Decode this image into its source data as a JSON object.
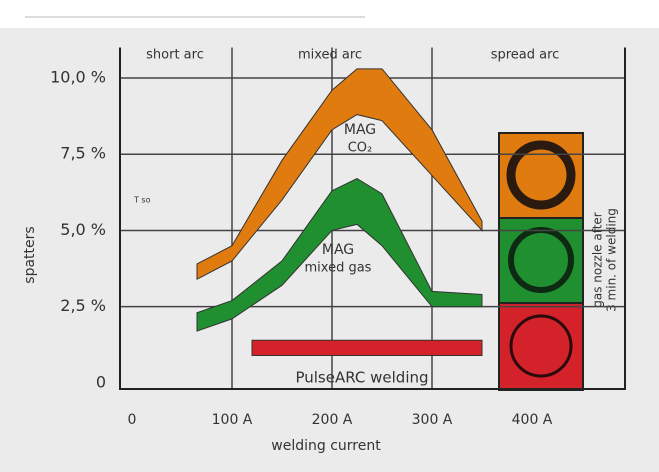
{
  "chart_data": {
    "type": "band",
    "y_label": "spatters",
    "x_label": "welding current",
    "regions": [
      "short arc",
      "mixed arc",
      "spread arc"
    ],
    "side_label": [
      "gas nozzle after",
      "3 min. of welding"
    ],
    "annotation": "T so",
    "xlim": [
      -12,
      493
    ],
    "ylim": [
      -0.2,
      11
    ],
    "xticks": [
      0,
      {
        "value": 100,
        "label": "100 A"
      },
      {
        "value": 200,
        "label": "200 A"
      },
      {
        "value": 300,
        "label": "300 A"
      },
      {
        "value": 400,
        "label": "400 A"
      }
    ],
    "yticks": [
      0,
      {
        "value": 2.5,
        "label": "2,5 %"
      },
      {
        "value": 5,
        "label": "5,0 %"
      },
      {
        "value": 7.5,
        "label": "7,5 %"
      },
      {
        "value": 10,
        "label": "10,0 %"
      }
    ],
    "grid": true,
    "series": [
      {
        "name": [
          "MAG",
          "CO₂"
        ],
        "color": "#e07b10",
        "x": [
          65,
          100,
          150,
          200,
          225,
          250,
          300,
          350
        ],
        "upper": [
          3.9,
          4.5,
          7.3,
          9.6,
          10.3,
          10.3,
          8.3,
          5.3
        ],
        "lower": [
          3.4,
          4.0,
          6.0,
          8.3,
          8.8,
          8.6,
          6.8,
          5.0
        ]
      },
      {
        "name": [
          "MAG",
          "mixed gas"
        ],
        "color": "#1f8f2f",
        "x": [
          65,
          100,
          150,
          200,
          225,
          250,
          300,
          350
        ],
        "upper": [
          2.3,
          2.7,
          4.0,
          6.3,
          6.7,
          6.2,
          3.0,
          2.9
        ],
        "lower": [
          1.7,
          2.1,
          3.2,
          5.0,
          5.2,
          4.5,
          2.5,
          2.5
        ]
      },
      {
        "name": [
          "PulseARC welding"
        ],
        "color": "#d4222a",
        "x": [
          120,
          350
        ],
        "upper": [
          1.4,
          1.4
        ],
        "lower": [
          0.9,
          0.9
        ]
      }
    ]
  }
}
